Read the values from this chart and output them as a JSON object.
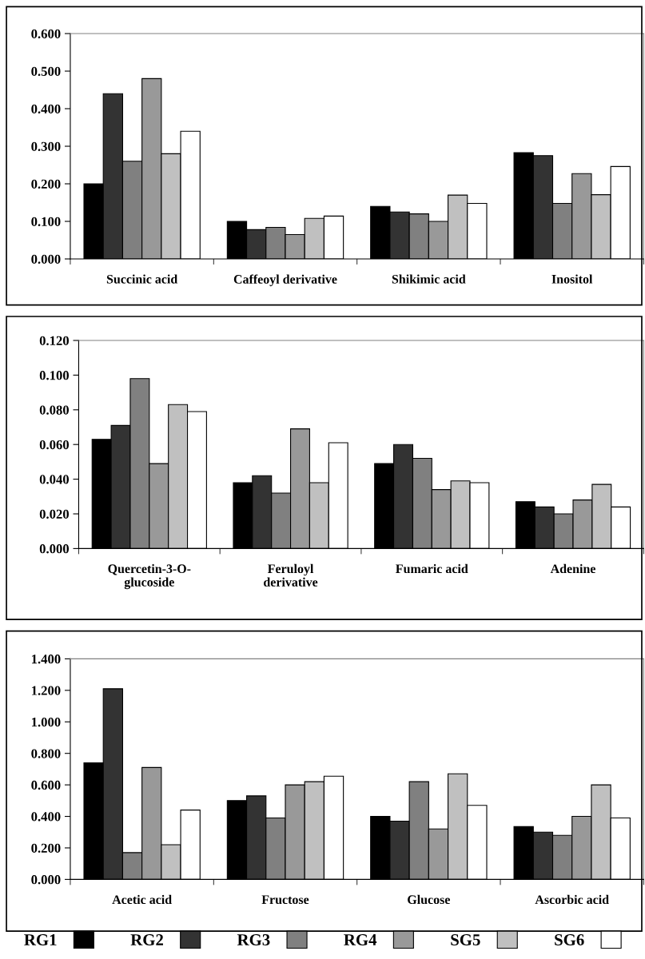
{
  "chart_data": [
    {
      "type": "bar",
      "categories": [
        "Succinic acid",
        "Caffeoyl derivative",
        "Shikimic acid",
        "Inositol"
      ],
      "series": [
        {
          "name": "RG1",
          "color": "#000000",
          "values": [
            0.2,
            0.1,
            0.14,
            0.283
          ]
        },
        {
          "name": "RG2",
          "color": "#333333",
          "values": [
            0.44,
            0.078,
            0.125,
            0.275
          ]
        },
        {
          "name": "RG3",
          "color": "#808080",
          "values": [
            0.26,
            0.084,
            0.12,
            0.148
          ]
        },
        {
          "name": "RG4",
          "color": "#999999",
          "values": [
            0.48,
            0.065,
            0.1,
            0.227
          ]
        },
        {
          "name": "SG5",
          "color": "#c0c0c0",
          "values": [
            0.28,
            0.108,
            0.17,
            0.171
          ]
        },
        {
          "name": "SG6",
          "color": "#ffffff",
          "values": [
            0.34,
            0.114,
            0.148,
            0.246
          ]
        }
      ],
      "ylim": [
        0,
        0.6
      ],
      "yticks": [
        {
          "value": 0,
          "label": "0.000"
        },
        {
          "value": 0.1,
          "label": "0.100"
        },
        {
          "value": 0.2,
          "label": "0.200"
        },
        {
          "value": 0.3,
          "label": "0.300"
        },
        {
          "value": 0.4,
          "label": "0.400"
        },
        {
          "value": 0.5,
          "label": "0.500"
        },
        {
          "value": 0.6,
          "label": "0.600"
        }
      ],
      "grid": false,
      "legend": "bottom"
    },
    {
      "type": "bar",
      "categories": [
        "Quercetin-3-O-\nglucoside",
        "Feruloyl\nderivative",
        "Fumaric acid",
        "Adenine"
      ],
      "series": [
        {
          "color": "#000000",
          "values": [
            0.063,
            0.038,
            0.049,
            0.027
          ]
        },
        {
          "color": "#333333",
          "values": [
            0.071,
            0.042,
            0.06,
            0.024
          ]
        },
        {
          "color": "#808080",
          "values": [
            0.098,
            0.032,
            0.052,
            0.02
          ]
        },
        {
          "color": "#999999",
          "values": [
            0.049,
            0.069,
            0.034,
            0.028
          ]
        },
        {
          "color": "#c0c0c0",
          "values": [
            0.083,
            0.038,
            0.039,
            0.037
          ]
        },
        {
          "color": "#ffffff",
          "values": [
            0.079,
            0.061,
            0.038,
            0.024
          ]
        }
      ],
      "ylim": [
        0,
        0.12
      ],
      "yticks": [
        {
          "value": 0,
          "label": "0.000"
        },
        {
          "value": 0.02,
          "label": "0.020"
        },
        {
          "value": 0.04,
          "label": "0.040"
        },
        {
          "value": 0.06,
          "label": "0.060"
        },
        {
          "value": 0.08,
          "label": "0.080"
        },
        {
          "value": 0.1,
          "label": "0.100"
        },
        {
          "value": 0.12,
          "label": "0.120"
        }
      ],
      "grid": false,
      "legend": false
    },
    {
      "type": "bar",
      "categories": [
        "Acetic acid",
        "Fructose",
        "Glucose",
        "Ascorbic acid"
      ],
      "series": [
        {
          "color": "#000000",
          "values": [
            0.74,
            0.5,
            0.4,
            0.335
          ]
        },
        {
          "color": "#333333",
          "values": [
            1.21,
            0.53,
            0.37,
            0.3
          ]
        },
        {
          "color": "#808080",
          "values": [
            0.17,
            0.39,
            0.62,
            0.28
          ]
        },
        {
          "color": "#999999",
          "values": [
            0.71,
            0.6,
            0.32,
            0.4
          ]
        },
        {
          "color": "#c0c0c0",
          "values": [
            0.22,
            0.62,
            0.67,
            0.6
          ]
        },
        {
          "color": "#ffffff",
          "values": [
            0.44,
            0.655,
            0.47,
            0.39
          ]
        }
      ],
      "ylim": [
        0,
        1.4
      ],
      "yticks": [
        {
          "value": 0,
          "label": "0.000"
        },
        {
          "value": 0.2,
          "label": "0.200"
        },
        {
          "value": 0.4,
          "label": "0.400"
        },
        {
          "value": 0.6,
          "label": "0.600"
        },
        {
          "value": 0.8,
          "label": "0.800"
        },
        {
          "value": 1.0,
          "label": "1.000"
        },
        {
          "value": 1.2,
          "label": "1.200"
        },
        {
          "value": 1.4,
          "label": "1.400"
        }
      ],
      "grid": false,
      "legend": false
    }
  ]
}
